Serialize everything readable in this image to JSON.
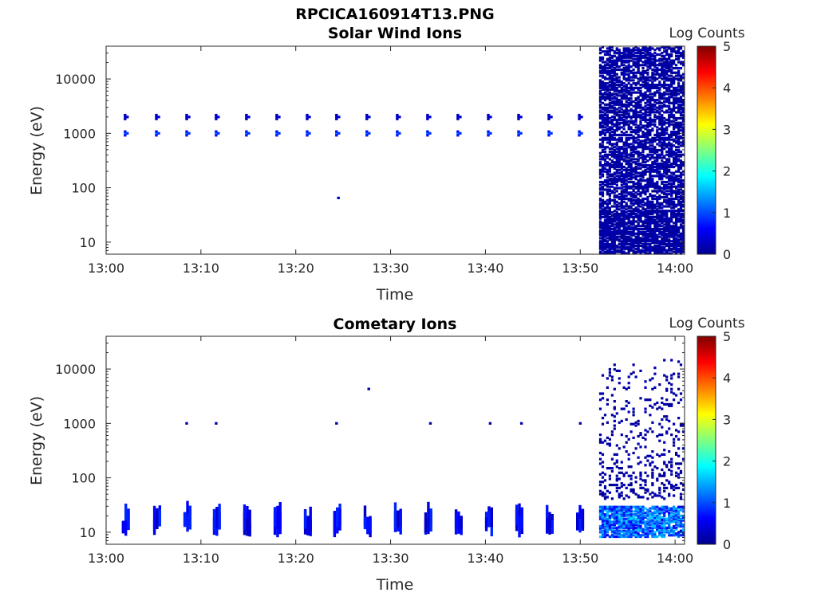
{
  "figure": {
    "title": "RPCICA160914T13.PNG"
  },
  "chart_data": [
    {
      "type": "heatmap",
      "title": "Solar Wind Ions",
      "xlabel": "Time",
      "ylabel": "Energy (eV)",
      "x_range": [
        "13:00",
        "14:01"
      ],
      "x_ticks": [
        "13:00",
        "13:10",
        "13:20",
        "13:30",
        "13:40",
        "13:50",
        "14:00"
      ],
      "y_scale": "log",
      "y_range": [
        6,
        40000
      ],
      "y_ticks": [
        "10",
        "100",
        "1000",
        "10000"
      ],
      "colorbar": {
        "label": "Log Counts",
        "range": [
          0,
          5
        ],
        "ticks": [
          "0",
          "1",
          "2",
          "3",
          "4",
          "5"
        ],
        "colormap": "jet"
      },
      "features": [
        {
          "time_min": [
            2,
            5.3,
            8.5,
            11.6,
            14.8,
            18,
            21.2,
            24.3,
            27.5,
            30.7,
            33.9,
            37.1,
            40.3,
            43.5,
            46.7,
            49.9
          ],
          "energy_ev": 2000,
          "log_counts": 0.5
        },
        {
          "time_min": [
            2,
            5.3,
            8.5,
            11.6,
            14.8,
            18,
            21.2,
            24.3,
            27.5,
            30.7,
            33.9,
            37.1,
            40.3,
            43.5,
            46.7,
            49.9
          ],
          "energy_ev": 1000,
          "log_counts": 1.2
        },
        {
          "time_min": [
            24.5
          ],
          "energy_ev": 65,
          "log_counts": 0.3
        },
        {
          "time_min_range": [
            52,
            61
          ],
          "energy_ev_range": [
            6,
            40000
          ],
          "log_counts": 0.2,
          "note_type": "dense-noise"
        }
      ]
    },
    {
      "type": "heatmap",
      "title": "Cometary Ions",
      "xlabel": "Time",
      "ylabel": "Energy (eV)",
      "x_range": [
        "13:00",
        "14:01"
      ],
      "x_ticks": [
        "13:00",
        "13:10",
        "13:20",
        "13:30",
        "13:40",
        "13:50",
        "14:00"
      ],
      "y_scale": "log",
      "y_range": [
        6,
        40000
      ],
      "y_ticks": [
        "10",
        "100",
        "1000",
        "10000"
      ],
      "colorbar": {
        "label": "Log Counts",
        "range": [
          0,
          5
        ],
        "ticks": [
          "0",
          "1",
          "2",
          "3",
          "4",
          "5"
        ],
        "colormap": "jet"
      },
      "features": [
        {
          "time_min": [
            2,
            5.3,
            8.5,
            11.6,
            14.8,
            18,
            21.2,
            24.3,
            27.5,
            30.7,
            33.9,
            37.1,
            40.3,
            43.5,
            46.7,
            49.9
          ],
          "energy_ev_range": [
            8,
            30
          ],
          "log_counts": 0.6
        },
        {
          "time_min": [
            8.5,
            11.6,
            24.3,
            34.2,
            40.5,
            43.8,
            50
          ],
          "energy_ev": 1000,
          "log_counts": 0.2
        },
        {
          "time_min": [
            27.7
          ],
          "energy_ev": 4300,
          "log_counts": 0.2
        },
        {
          "time_min_range": [
            52,
            61
          ],
          "energy_ev_range": [
            40,
            15000
          ],
          "log_counts": 0.2,
          "note_type": "sparse-noise"
        },
        {
          "time_min_range": [
            52,
            61
          ],
          "energy_ev_range": [
            8,
            30
          ],
          "log_counts": 1.0
        }
      ]
    }
  ]
}
